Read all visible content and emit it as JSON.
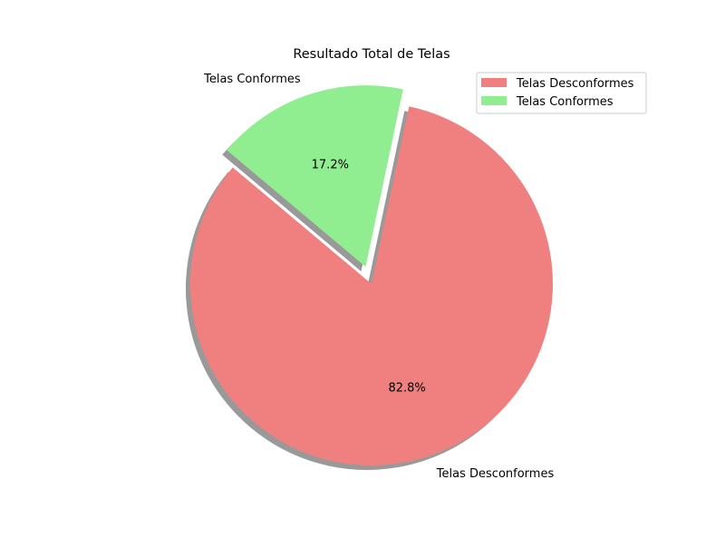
{
  "chart_data": {
    "type": "pie",
    "title": "Resultado Total de Telas",
    "start_angle": 140,
    "direction": "counterclockwise",
    "shadow": true,
    "slices": [
      {
        "label": "Telas Desconformes",
        "value": 82.8,
        "pct_label": "82.8%",
        "color": "#f08080",
        "explode": 0
      },
      {
        "label": "Telas Conformes",
        "value": 17.2,
        "pct_label": "17.2%",
        "color": "#90ee90",
        "explode": 0.1
      }
    ],
    "legend": {
      "position": "upper-right",
      "entries": [
        "Telas Desconformes",
        "Telas Conformes"
      ]
    }
  }
}
